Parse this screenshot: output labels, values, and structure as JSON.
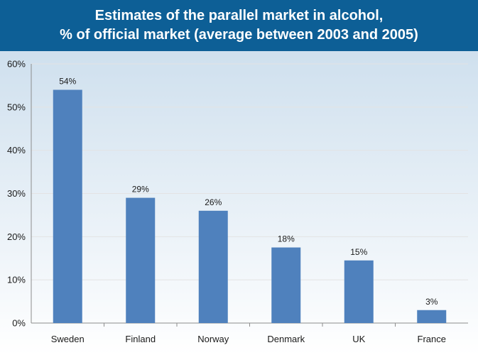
{
  "title": {
    "line1": "Estimates of the parallel market in alcohol,",
    "line2": "% of official market (average between 2003 and 2005)"
  },
  "colors": {
    "header": "#0d5f96",
    "bar": "#4f81bd",
    "plot_top": "#cfe0ee",
    "plot_bottom": "#ffffff",
    "grid": "#e3e3e3"
  },
  "chart_data": {
    "type": "bar",
    "title": "Estimates of the parallel market in alcohol, % of official market (average between 2003 and 2005)",
    "categories": [
      "Sweden",
      "Finland",
      "Norway",
      "Denmark",
      "UK",
      "France"
    ],
    "values": [
      54,
      29,
      26,
      17.5,
      14.5,
      3
    ],
    "labels": [
      "54%",
      "29%",
      "26%",
      "18%",
      "15%",
      "3%"
    ],
    "yticks": [
      0,
      10,
      20,
      30,
      40,
      50,
      60
    ],
    "ytick_labels": [
      "0%",
      "10%",
      "20%",
      "30%",
      "40%",
      "50%",
      "60%"
    ],
    "ylim": [
      0,
      60
    ],
    "xlabel": "",
    "ylabel": "",
    "grid": true,
    "legend": "none"
  }
}
